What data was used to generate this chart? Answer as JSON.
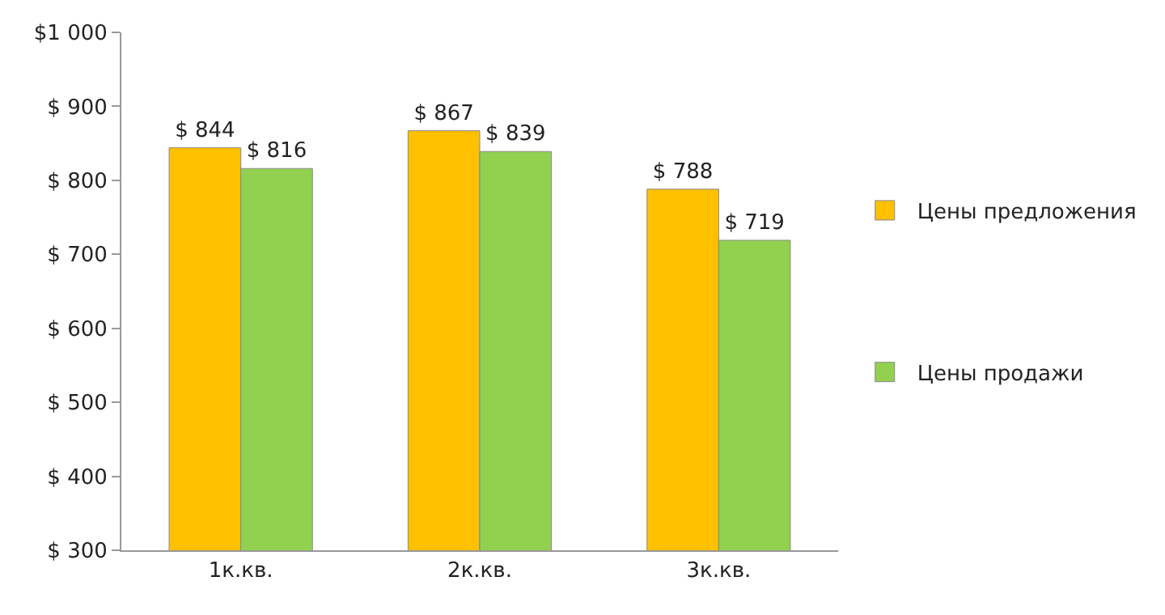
{
  "chart_data": {
    "type": "bar",
    "categories": [
      "1к.кв.",
      "2к.кв.",
      "3к.кв."
    ],
    "series": [
      {
        "name": "Цены предложения",
        "color": "#ffc000",
        "values": [
          844,
          867,
          788
        ],
        "value_labels": [
          "$ 844",
          "$ 867",
          "$ 788"
        ]
      },
      {
        "name": "Цены продажи",
        "color": "#92d050",
        "values": [
          816,
          839,
          719
        ],
        "value_labels": [
          "$ 816",
          "$ 839",
          "$ 719"
        ]
      }
    ],
    "ylim": [
      300,
      1000
    ],
    "yticks": [
      {
        "value": 300,
        "label": "$ 300"
      },
      {
        "value": 400,
        "label": "$ 400"
      },
      {
        "value": 500,
        "label": "$ 500"
      },
      {
        "value": 600,
        "label": "$ 600"
      },
      {
        "value": 700,
        "label": "$ 700"
      },
      {
        "value": 800,
        "label": "$ 800"
      },
      {
        "value": 900,
        "label": "$ 900"
      },
      {
        "value": 1000,
        "label": "$1 000"
      }
    ],
    "legend": "right"
  }
}
